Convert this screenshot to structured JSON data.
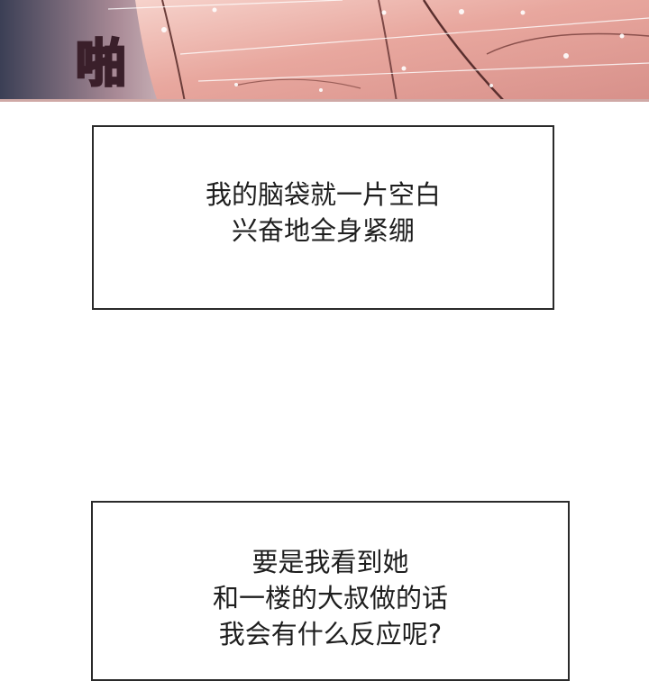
{
  "panel_top": {
    "sound_effect": "啪"
  },
  "caption_1": {
    "lines": [
      "我的脑袋就一片空白",
      "兴奋地全身紧绷"
    ]
  },
  "caption_2": {
    "lines": [
      "要是我看到她",
      "和一楼的大叔做的话",
      "我会有什么反应呢?"
    ]
  },
  "colors": {
    "skin_highlight": "#f0b7ae",
    "skin_shadow": "#c9877f",
    "sfx_fill": "#9a5a70",
    "border": "#2a2a2a"
  }
}
